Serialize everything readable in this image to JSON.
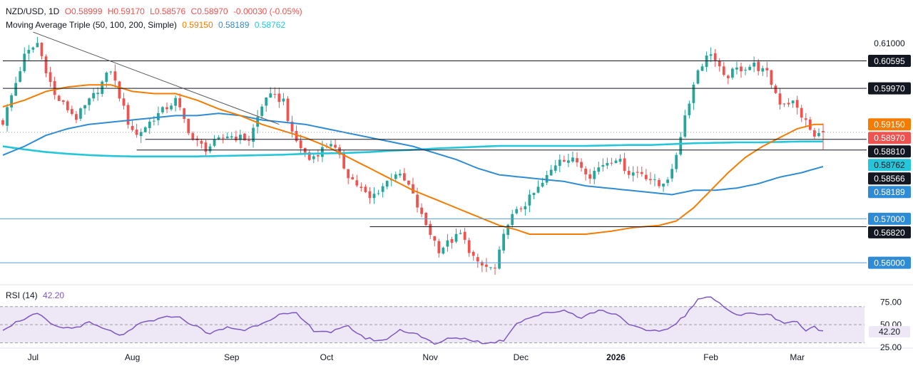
{
  "header": {
    "symbol": "NZD/USD, 1D",
    "open": "O0.58999",
    "high": "H0.59170",
    "low": "L0.58576",
    "close": "C0.58970",
    "change": "-0.00030 (-0.05%)",
    "ma_label": "Moving Average Triple (50, 100, 200, Simple)",
    "ma50": "0.59150",
    "ma100": "0.58189",
    "ma200": "0.58762",
    "rsi_label": "RSI (14)",
    "rsi_value": "42.20"
  },
  "colors": {
    "up": "#26a69a",
    "down": "#ef5350",
    "ma50": "#f57c00",
    "ma100": "#2e8bd6",
    "ma200": "#26c6da",
    "rsi": "#7e57c2",
    "rsi_band": "#ede7f6",
    "lines": "#131722"
  },
  "chart_data": [
    {
      "type": "candlestick",
      "title": "NZD/USD, 1D",
      "ylim": [
        0.555,
        0.613
      ],
      "price_labels": [
        {
          "value": 0.61,
          "text": "0.61000",
          "style": "plain"
        },
        {
          "value": 0.60595,
          "text": "0.60595",
          "style": "dark"
        },
        {
          "value": 0.5997,
          "text": "0.59970",
          "style": "dark"
        },
        {
          "value": 0.5915,
          "text": "0.59150",
          "style": "ma50"
        },
        {
          "value": 0.5897,
          "text": "0.58970",
          "style": "price"
        },
        {
          "value": 0.5881,
          "text": "0.58810",
          "style": "dark"
        },
        {
          "value": 0.58762,
          "text": "0.58762",
          "style": "ma200"
        },
        {
          "value": 0.58566,
          "text": "0.58566",
          "style": "dark"
        },
        {
          "value": 0.58189,
          "text": "0.58189",
          "style": "ma100"
        },
        {
          "value": 0.57,
          "text": "0.57000",
          "style": "blue"
        },
        {
          "value": 0.5682,
          "text": "0.56820",
          "style": "dark"
        },
        {
          "value": 0.56,
          "text": "0.56000",
          "style": "blue"
        }
      ],
      "x_labels": [
        {
          "index": 7,
          "text": "Jul"
        },
        {
          "index": 30,
          "text": "Aug"
        },
        {
          "index": 53,
          "text": "Sep"
        },
        {
          "index": 75,
          "text": "Oct"
        },
        {
          "index": 99,
          "text": "Nov"
        },
        {
          "index": 120,
          "text": "Dec"
        },
        {
          "index": 142,
          "text": "2026"
        },
        {
          "index": 164,
          "text": "Feb"
        },
        {
          "index": 184,
          "text": "Mar"
        }
      ],
      "horizontal_levels": [
        {
          "value": 0.60595,
          "from_index": 0,
          "style": "dark"
        },
        {
          "value": 0.5997,
          "from_index": 0,
          "style": "dark"
        },
        {
          "value": 0.5881,
          "from_index": 33,
          "style": "dark"
        },
        {
          "value": 0.58566,
          "from_index": 31,
          "style": "dark"
        },
        {
          "value": 0.5682,
          "from_index": 85,
          "style": "dark"
        },
        {
          "value": 0.57,
          "from_index": 0,
          "style": "blue"
        },
        {
          "value": 0.56,
          "from_index": 0,
          "style": "blue"
        },
        {
          "value": 0.5897,
          "from_index": 0,
          "style": "dotted"
        }
      ],
      "trendline": {
        "from": [
          7,
          0.6125
        ],
        "to": [
          64,
          0.5915
        ]
      },
      "close_anchors": [
        [
          0,
          0.592
        ],
        [
          5,
          0.607
        ],
        [
          8,
          0.61
        ],
        [
          12,
          0.598
        ],
        [
          17,
          0.593
        ],
        [
          21,
          0.598
        ],
        [
          25,
          0.604
        ],
        [
          29,
          0.592
        ],
        [
          31,
          0.589
        ],
        [
          35,
          0.593
        ],
        [
          40,
          0.597
        ],
        [
          44,
          0.588
        ],
        [
          47,
          0.586
        ],
        [
          52,
          0.589
        ],
        [
          57,
          0.588
        ],
        [
          61,
          0.598
        ],
        [
          65,
          0.597
        ],
        [
          67,
          0.589
        ],
        [
          71,
          0.5835
        ],
        [
          76,
          0.5875
        ],
        [
          80,
          0.58
        ],
        [
          85,
          0.5745
        ],
        [
          91,
          0.5805
        ],
        [
          94,
          0.5775
        ],
        [
          97,
          0.5705
        ],
        [
          101,
          0.563
        ],
        [
          106,
          0.5665
        ],
        [
          110,
          0.5595
        ],
        [
          114,
          0.5585
        ],
        [
          117,
          0.5695
        ],
        [
          121,
          0.5735
        ],
        [
          125,
          0.578
        ],
        [
          129,
          0.584
        ],
        [
          133,
          0.583
        ],
        [
          136,
          0.58
        ],
        [
          139,
          0.5825
        ],
        [
          142,
          0.584
        ],
        [
          145,
          0.5805
        ],
        [
          148,
          0.5805
        ],
        [
          152,
          0.5775
        ],
        [
          155,
          0.5805
        ],
        [
          158,
          0.5935
        ],
        [
          161,
          0.604
        ],
        [
          164,
          0.608
        ],
        [
          167,
          0.602
        ],
        [
          170,
          0.604
        ],
        [
          174,
          0.605
        ],
        [
          177,
          0.603
        ],
        [
          180,
          0.5965
        ],
        [
          183,
          0.5965
        ],
        [
          186,
          0.592
        ],
        [
          188,
          0.5885
        ],
        [
          190,
          0.5897
        ]
      ],
      "ma50_points": [
        [
          0,
          0.5955
        ],
        [
          5,
          0.597
        ],
        [
          10,
          0.599
        ],
        [
          15,
          0.6
        ],
        [
          20,
          0.6005
        ],
        [
          25,
          0.6005
        ],
        [
          30,
          0.599
        ],
        [
          35,
          0.5985
        ],
        [
          40,
          0.5985
        ],
        [
          45,
          0.597
        ],
        [
          50,
          0.595
        ],
        [
          55,
          0.5935
        ],
        [
          60,
          0.5915
        ],
        [
          65,
          0.59
        ],
        [
          70,
          0.5885
        ],
        [
          75,
          0.5865
        ],
        [
          80,
          0.584
        ],
        [
          85,
          0.5815
        ],
        [
          90,
          0.579
        ],
        [
          95,
          0.5765
        ],
        [
          100,
          0.5745
        ],
        [
          105,
          0.5725
        ],
        [
          110,
          0.5705
        ],
        [
          115,
          0.5685
        ],
        [
          119,
          0.5675
        ],
        [
          122,
          0.5665
        ],
        [
          128,
          0.5665
        ],
        [
          135,
          0.5665
        ],
        [
          141,
          0.5672
        ],
        [
          146,
          0.568
        ],
        [
          152,
          0.5685
        ],
        [
          156,
          0.5695
        ],
        [
          160,
          0.5725
        ],
        [
          164,
          0.5765
        ],
        [
          168,
          0.5805
        ],
        [
          172,
          0.584
        ],
        [
          176,
          0.5865
        ],
        [
          180,
          0.5885
        ],
        [
          184,
          0.5905
        ],
        [
          188,
          0.5915
        ],
        [
          190,
          0.5915
        ]
      ],
      "ma100_points": [
        [
          0,
          0.5845
        ],
        [
          5,
          0.5865
        ],
        [
          10,
          0.589
        ],
        [
          15,
          0.5905
        ],
        [
          20,
          0.5915
        ],
        [
          25,
          0.592
        ],
        [
          30,
          0.5925
        ],
        [
          35,
          0.593
        ],
        [
          40,
          0.5935
        ],
        [
          45,
          0.5935
        ],
        [
          50,
          0.594
        ],
        [
          55,
          0.5935
        ],
        [
          60,
          0.5925
        ],
        [
          65,
          0.592
        ],
        [
          70,
          0.5915
        ],
        [
          75,
          0.5905
        ],
        [
          80,
          0.5895
        ],
        [
          85,
          0.5885
        ],
        [
          90,
          0.5875
        ],
        [
          95,
          0.5865
        ],
        [
          100,
          0.585
        ],
        [
          105,
          0.5835
        ],
        [
          110,
          0.5815
        ],
        [
          115,
          0.58
        ],
        [
          120,
          0.5795
        ],
        [
          125,
          0.579
        ],
        [
          130,
          0.5785
        ],
        [
          135,
          0.5775
        ],
        [
          140,
          0.577
        ],
        [
          145,
          0.5765
        ],
        [
          150,
          0.576
        ],
        [
          155,
          0.5755
        ],
        [
          160,
          0.5765
        ],
        [
          165,
          0.5765
        ],
        [
          170,
          0.577
        ],
        [
          175,
          0.578
        ],
        [
          180,
          0.5795
        ],
        [
          185,
          0.5805
        ],
        [
          190,
          0.5819
        ]
      ],
      "ma200_points": [
        [
          0,
          0.5865
        ],
        [
          5,
          0.5858
        ],
        [
          10,
          0.5852
        ],
        [
          15,
          0.5848
        ],
        [
          20,
          0.5845
        ],
        [
          25,
          0.5843
        ],
        [
          30,
          0.5842
        ],
        [
          35,
          0.5842
        ],
        [
          40,
          0.5842
        ],
        [
          45,
          0.5842
        ],
        [
          50,
          0.5843
        ],
        [
          55,
          0.5844
        ],
        [
          60,
          0.5845
        ],
        [
          65,
          0.5846
        ],
        [
          70,
          0.5848
        ],
        [
          75,
          0.5849
        ],
        [
          80,
          0.585
        ],
        [
          85,
          0.5852
        ],
        [
          90,
          0.5855
        ],
        [
          95,
          0.5857
        ],
        [
          100,
          0.586
        ],
        [
          105,
          0.5862
        ],
        [
          110,
          0.5864
        ],
        [
          115,
          0.5866
        ],
        [
          120,
          0.5866
        ],
        [
          125,
          0.5866
        ],
        [
          130,
          0.5866
        ],
        [
          135,
          0.5866
        ],
        [
          140,
          0.5867
        ],
        [
          145,
          0.5868
        ],
        [
          150,
          0.5868
        ],
        [
          155,
          0.587
        ],
        [
          160,
          0.5872
        ],
        [
          165,
          0.5873
        ],
        [
          170,
          0.5874
        ],
        [
          175,
          0.5874
        ],
        [
          180,
          0.5875
        ],
        [
          185,
          0.5876
        ],
        [
          190,
          0.5876
        ]
      ]
    },
    {
      "type": "line",
      "title": "RSI (14)",
      "ylim": [
        25,
        80
      ],
      "tick_labels": [
        {
          "value": 75,
          "text": "75.00"
        },
        {
          "value": 50,
          "text": "50.00"
        },
        {
          "value": 25,
          "text": "25.00"
        }
      ],
      "band": [
        30,
        70
      ],
      "midline": 50,
      "last_value": 42.2,
      "points": [
        [
          0,
          45
        ],
        [
          4,
          55
        ],
        [
          8,
          62
        ],
        [
          12,
          48
        ],
        [
          16,
          46
        ],
        [
          20,
          52
        ],
        [
          24,
          44
        ],
        [
          28,
          38
        ],
        [
          32,
          52
        ],
        [
          36,
          56
        ],
        [
          40,
          60
        ],
        [
          44,
          50
        ],
        [
          48,
          40
        ],
        [
          52,
          47
        ],
        [
          56,
          44
        ],
        [
          60,
          52
        ],
        [
          64,
          61
        ],
        [
          68,
          62
        ],
        [
          72,
          44
        ],
        [
          76,
          42
        ],
        [
          80,
          48
        ],
        [
          84,
          35
        ],
        [
          88,
          32
        ],
        [
          92,
          44
        ],
        [
          96,
          40
        ],
        [
          100,
          28
        ],
        [
          104,
          36
        ],
        [
          108,
          34
        ],
        [
          112,
          29
        ],
        [
          116,
          33
        ],
        [
          119,
          52
        ],
        [
          122,
          58
        ],
        [
          126,
          63
        ],
        [
          130,
          66
        ],
        [
          134,
          58
        ],
        [
          138,
          66
        ],
        [
          142,
          62
        ],
        [
          146,
          48
        ],
        [
          150,
          42
        ],
        [
          154,
          45
        ],
        [
          158,
          60
        ],
        [
          161,
          77
        ],
        [
          164,
          82
        ],
        [
          167,
          70
        ],
        [
          170,
          60
        ],
        [
          174,
          63
        ],
        [
          178,
          60
        ],
        [
          181,
          52
        ],
        [
          184,
          54
        ],
        [
          186,
          42
        ],
        [
          188,
          48
        ],
        [
          190,
          42.2
        ]
      ]
    }
  ]
}
